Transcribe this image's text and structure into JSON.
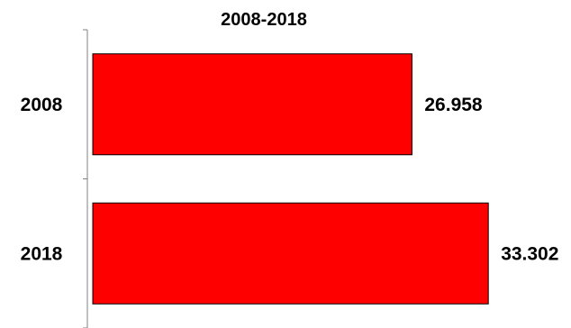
{
  "chart_data": {
    "type": "bar",
    "orientation": "horizontal",
    "title": "2008-2018",
    "categories": [
      "2008",
      "2018"
    ],
    "values": [
      26.958,
      33.302
    ],
    "value_labels": [
      "26.958",
      "33.302"
    ],
    "xlabel": "",
    "ylabel": "",
    "xlim": [
      0,
      38
    ],
    "grid": false,
    "legend": "none",
    "bar_color": "#ff0000"
  }
}
